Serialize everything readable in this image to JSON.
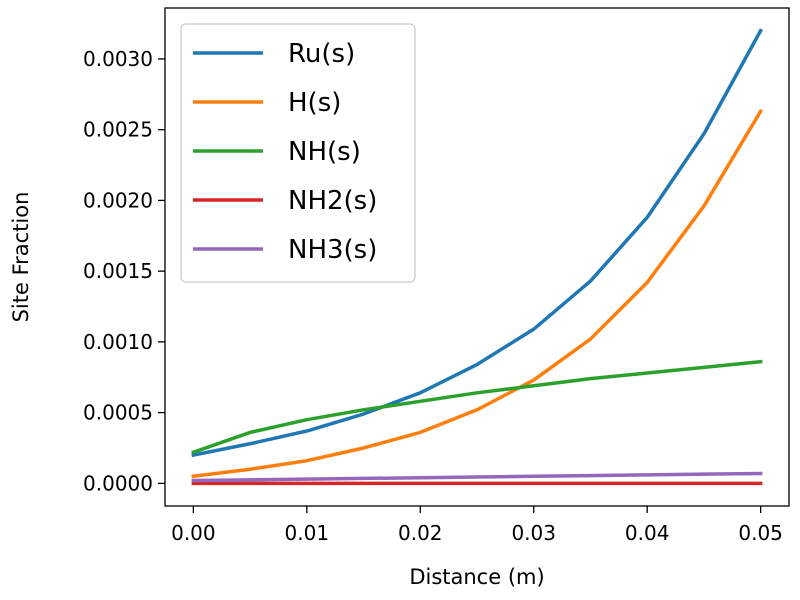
{
  "chart_data": {
    "type": "line",
    "xlabel": "Distance (m)",
    "ylabel": "Site Fraction",
    "xlim": [
      -0.0025,
      0.0525
    ],
    "ylim": [
      -0.00016,
      0.00336
    ],
    "xticks": [
      0.0,
      0.01,
      0.02,
      0.03,
      0.04,
      0.05
    ],
    "xtick_labels": [
      "0.00",
      "0.01",
      "0.02",
      "0.03",
      "0.04",
      "0.05"
    ],
    "yticks": [
      0.0,
      0.0005,
      0.001,
      0.0015,
      0.002,
      0.0025,
      0.003
    ],
    "ytick_labels": [
      "0.0000",
      "0.0005",
      "0.0010",
      "0.0015",
      "0.0020",
      "0.0025",
      "0.0030"
    ],
    "grid": false,
    "legend_position": "top-left",
    "x": [
      0.0,
      0.005,
      0.01,
      0.015,
      0.02,
      0.025,
      0.03,
      0.035,
      0.04,
      0.045,
      0.05
    ],
    "series": [
      {
        "name": "Ru(s)",
        "color": "#1f77b4",
        "values": [
          0.0002,
          0.00028,
          0.00037,
          0.00049,
          0.00064,
          0.00084,
          0.00109,
          0.00143,
          0.00188,
          0.00247,
          0.0032
        ]
      },
      {
        "name": "H(s)",
        "color": "#ff7f0e",
        "values": [
          5e-05,
          0.0001,
          0.00016,
          0.00025,
          0.00036,
          0.00052,
          0.00073,
          0.00102,
          0.00142,
          0.00196,
          0.00263
        ]
      },
      {
        "name": "NH(s)",
        "color": "#2ca02c",
        "values": [
          0.00022,
          0.00036,
          0.00045,
          0.00052,
          0.00058,
          0.00064,
          0.00069,
          0.00074,
          0.00078,
          0.00082,
          0.00086
        ]
      },
      {
        "name": "NH2(s)",
        "color": "#d62728",
        "values": [
          0.0,
          0.0,
          0.0,
          0.0,
          0.0,
          0.0,
          0.0,
          0.0,
          0.0,
          0.0,
          0.0
        ]
      },
      {
        "name": "NH3(s)",
        "color": "#9467bd",
        "values": [
          2e-05,
          2.5e-05,
          3e-05,
          3.5e-05,
          4e-05,
          4.5e-05,
          5e-05,
          5.5e-05,
          6e-05,
          6.5e-05,
          7e-05
        ]
      }
    ]
  }
}
